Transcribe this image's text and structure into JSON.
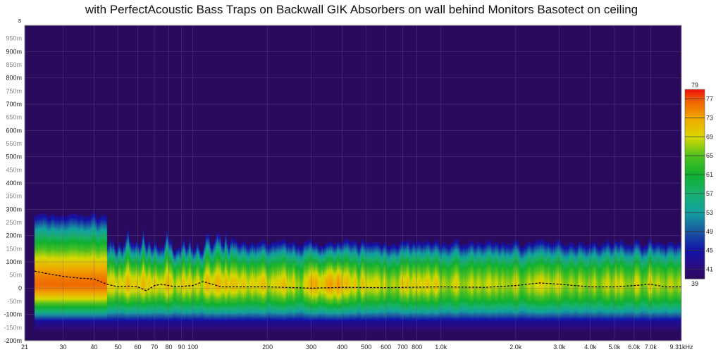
{
  "title": "with PerfectAcoustic Bass Traps on Backwall GIK Absorbers on wall behind Monitors Basotect on ceiling",
  "chart_data": {
    "type": "heatmap",
    "title": "with PerfectAcoustic Bass Traps on Backwall GIK Absorbers on wall behind Monitors Basotect on ceiling",
    "xlabel": "",
    "ylabel": "",
    "y_unit_label": "s",
    "x_scale": "log",
    "xlim": [
      21,
      9310
    ],
    "ylim_ms": [
      -200,
      1000
    ],
    "grid": true,
    "x_ticks": [
      {
        "v": 21,
        "l": "21"
      },
      {
        "v": 30,
        "l": "30"
      },
      {
        "v": 40,
        "l": "40"
      },
      {
        "v": 50,
        "l": "50"
      },
      {
        "v": 60,
        "l": "60"
      },
      {
        "v": 70,
        "l": "70"
      },
      {
        "v": 80,
        "l": "80"
      },
      {
        "v": 90,
        "l": "90"
      },
      {
        "v": 100,
        "l": "100"
      },
      {
        "v": 200,
        "l": "200"
      },
      {
        "v": 300,
        "l": "300"
      },
      {
        "v": 400,
        "l": "400"
      },
      {
        "v": 500,
        "l": "500"
      },
      {
        "v": 600,
        "l": "600"
      },
      {
        "v": 700,
        "l": "700"
      },
      {
        "v": 800,
        "l": "800"
      },
      {
        "v": 1000,
        "l": "1.0k"
      },
      {
        "v": 2000,
        "l": "2.0k"
      },
      {
        "v": 3000,
        "l": "3.0k"
      },
      {
        "v": 4000,
        "l": "4.0k"
      },
      {
        "v": 5000,
        "l": "5.0k"
      },
      {
        "v": 6000,
        "l": "6.0k"
      },
      {
        "v": 7000,
        "l": "7.0k"
      },
      {
        "v": 9310,
        "l": "9.31kHz"
      }
    ],
    "y_ticks": [
      {
        "v": 950,
        "l": "950m",
        "minor": true
      },
      {
        "v": 900,
        "l": "900m"
      },
      {
        "v": 850,
        "l": "850m",
        "minor": true
      },
      {
        "v": 800,
        "l": "800m"
      },
      {
        "v": 750,
        "l": "750m",
        "minor": true
      },
      {
        "v": 700,
        "l": "700m"
      },
      {
        "v": 650,
        "l": "650m",
        "minor": true
      },
      {
        "v": 600,
        "l": "600m"
      },
      {
        "v": 550,
        "l": "550m",
        "minor": true
      },
      {
        "v": 500,
        "l": "500m"
      },
      {
        "v": 450,
        "l": "450m",
        "minor": true
      },
      {
        "v": 400,
        "l": "400m"
      },
      {
        "v": 350,
        "l": "350m",
        "minor": true
      },
      {
        "v": 300,
        "l": "300m"
      },
      {
        "v": 250,
        "l": "250m",
        "minor": true
      },
      {
        "v": 200,
        "l": "200m"
      },
      {
        "v": 150,
        "l": "150m",
        "minor": true
      },
      {
        "v": 100,
        "l": "100m"
      },
      {
        "v": 50,
        "l": "50m",
        "minor": true
      },
      {
        "v": 0,
        "l": "0"
      },
      {
        "v": -50,
        "l": "-50m",
        "minor": true
      },
      {
        "v": -100,
        "l": "-100m"
      },
      {
        "v": -150,
        "l": "-150m",
        "minor": true
      },
      {
        "v": -200,
        "l": "-200m"
      }
    ],
    "color_scale": {
      "min": 39,
      "max": 79,
      "labels": [
        "79",
        "77",
        "73",
        "69",
        "65",
        "61",
        "57",
        "53",
        "49",
        "45",
        "41",
        "39"
      ],
      "ticks": [
        77,
        73,
        69,
        65,
        61,
        57,
        53,
        49,
        45,
        41
      ],
      "stops": [
        {
          "v": 39,
          "c": "#2a0a5c"
        },
        {
          "v": 41,
          "c": "#2c0a78"
        },
        {
          "v": 45,
          "c": "#1212a8"
        },
        {
          "v": 49,
          "c": "#1a55a0"
        },
        {
          "v": 53,
          "c": "#12a0a0"
        },
        {
          "v": 57,
          "c": "#18b070"
        },
        {
          "v": 61,
          "c": "#10b030"
        },
        {
          "v": 65,
          "c": "#50c020"
        },
        {
          "v": 69,
          "c": "#d8d800"
        },
        {
          "v": 73,
          "c": "#f0a800"
        },
        {
          "v": 77,
          "c": "#f05800"
        },
        {
          "v": 79,
          "c": "#f01010"
        }
      ]
    },
    "peak_time_curve": {
      "style": "dashed",
      "color": "#000000",
      "points": [
        [
          23,
          65
        ],
        [
          26,
          55
        ],
        [
          30,
          45
        ],
        [
          35,
          38
        ],
        [
          40,
          35
        ],
        [
          45,
          15
        ],
        [
          50,
          5
        ],
        [
          55,
          8
        ],
        [
          60,
          5
        ],
        [
          65,
          -10
        ],
        [
          70,
          10
        ],
        [
          75,
          15
        ],
        [
          85,
          5
        ],
        [
          100,
          10
        ],
        [
          110,
          25
        ],
        [
          120,
          15
        ],
        [
          130,
          5
        ],
        [
          200,
          5
        ],
        [
          300,
          0
        ],
        [
          400,
          3
        ],
        [
          600,
          2
        ],
        [
          1000,
          5
        ],
        [
          1500,
          3
        ],
        [
          2000,
          10
        ],
        [
          2500,
          20
        ],
        [
          3000,
          15
        ],
        [
          4000,
          5
        ],
        [
          5000,
          5
        ],
        [
          6000,
          10
        ],
        [
          7000,
          15
        ],
        [
          8000,
          5
        ],
        [
          9310,
          5
        ]
      ]
    },
    "background_color": "#2a0a5c"
  }
}
